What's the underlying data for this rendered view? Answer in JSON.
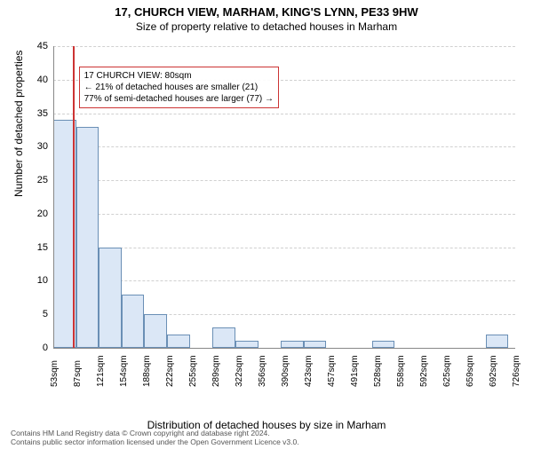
{
  "title_line1": "17, CHURCH VIEW, MARHAM, KING'S LYNN, PE33 9HW",
  "title_line2": "Size of property relative to detached houses in Marham",
  "ylabel": "Number of detached properties",
  "xlabel": "Distribution of detached houses by size in Marham",
  "chart": {
    "type": "histogram",
    "background_color": "#ffffff",
    "grid_color": "#d0d0d0",
    "axis_color": "#888888",
    "bar_fill": "#dbe7f6",
    "bar_border": "#6a8fb5",
    "marker_color": "#cc3333",
    "info_border": "#cc3333",
    "ylim": [
      0,
      45
    ],
    "ytick_step": 5,
    "yticks": [
      0,
      5,
      10,
      15,
      20,
      25,
      30,
      35,
      40,
      45
    ],
    "xlim_sqm": [
      50,
      740
    ],
    "bin_width_sqm": 34,
    "bins": [
      {
        "start": 50,
        "count": 34
      },
      {
        "start": 84,
        "count": 33
      },
      {
        "start": 118,
        "count": 15
      },
      {
        "start": 152,
        "count": 8
      },
      {
        "start": 186,
        "count": 5
      },
      {
        "start": 220,
        "count": 2
      },
      {
        "start": 254,
        "count": 0
      },
      {
        "start": 288,
        "count": 3
      },
      {
        "start": 322,
        "count": 1
      },
      {
        "start": 356,
        "count": 0
      },
      {
        "start": 390,
        "count": 1
      },
      {
        "start": 424,
        "count": 1
      },
      {
        "start": 458,
        "count": 0
      },
      {
        "start": 492,
        "count": 0
      },
      {
        "start": 526,
        "count": 1
      },
      {
        "start": 560,
        "count": 0
      },
      {
        "start": 594,
        "count": 0
      },
      {
        "start": 628,
        "count": 0
      },
      {
        "start": 662,
        "count": 0
      },
      {
        "start": 696,
        "count": 2
      }
    ],
    "xtick_labels": [
      "53sqm",
      "87sqm",
      "121sqm",
      "154sqm",
      "188sqm",
      "222sqm",
      "255sqm",
      "289sqm",
      "322sqm",
      "356sqm",
      "390sqm",
      "423sqm",
      "457sqm",
      "491sqm",
      "528sqm",
      "558sqm",
      "592sqm",
      "625sqm",
      "659sqm",
      "692sqm",
      "726sqm"
    ],
    "marker_sqm": 80,
    "tick_fontsize": 11,
    "label_fontsize": 12
  },
  "info_box": {
    "line1": "17 CHURCH VIEW: 80sqm",
    "line2": "← 21% of detached houses are smaller (21)",
    "line3": "77% of semi-detached houses are larger (77) →"
  },
  "attribution": {
    "line1": "Contains HM Land Registry data © Crown copyright and database right 2024.",
    "line2": "Contains public sector information licensed under the Open Government Licence v3.0."
  }
}
